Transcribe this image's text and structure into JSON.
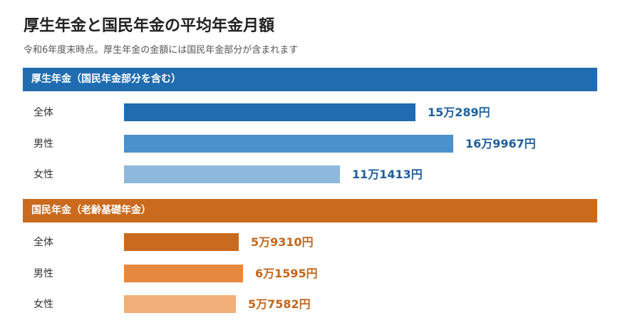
{
  "title": "厚生年金と国民年金の平均年金月額",
  "subtitle": "令和6年度末時点。厚生年金の金額には国民年金部分が含まれます",
  "chart_data": [
    {
      "type": "bar",
      "orientation": "horizontal",
      "title": "厚生年金（国民年金部分を含む）",
      "header_color": "#1f6cb0",
      "value_color": "#1f5f9c",
      "categories": [
        "全体",
        "男性",
        "女性"
      ],
      "values": [
        150289,
        169967,
        111413
      ],
      "value_labels": [
        "15万289円",
        "16万9967円",
        "11万1413円"
      ],
      "bar_colors": [
        "#1f6cb0",
        "#4b91cb",
        "#8fb9dc"
      ]
    },
    {
      "type": "bar",
      "orientation": "horizontal",
      "title": "国民年金（老齢基礎年金）",
      "header_color": "#c96a1f",
      "value_color": "#c0671d",
      "categories": [
        "全体",
        "男性",
        "女性"
      ],
      "values": [
        59310,
        61595,
        57582
      ],
      "value_labels": [
        "5万9310円",
        "6万1595円",
        "5万7582円"
      ],
      "bar_colors": [
        "#c96a1f",
        "#e6893f",
        "#f0ae78"
      ]
    }
  ]
}
